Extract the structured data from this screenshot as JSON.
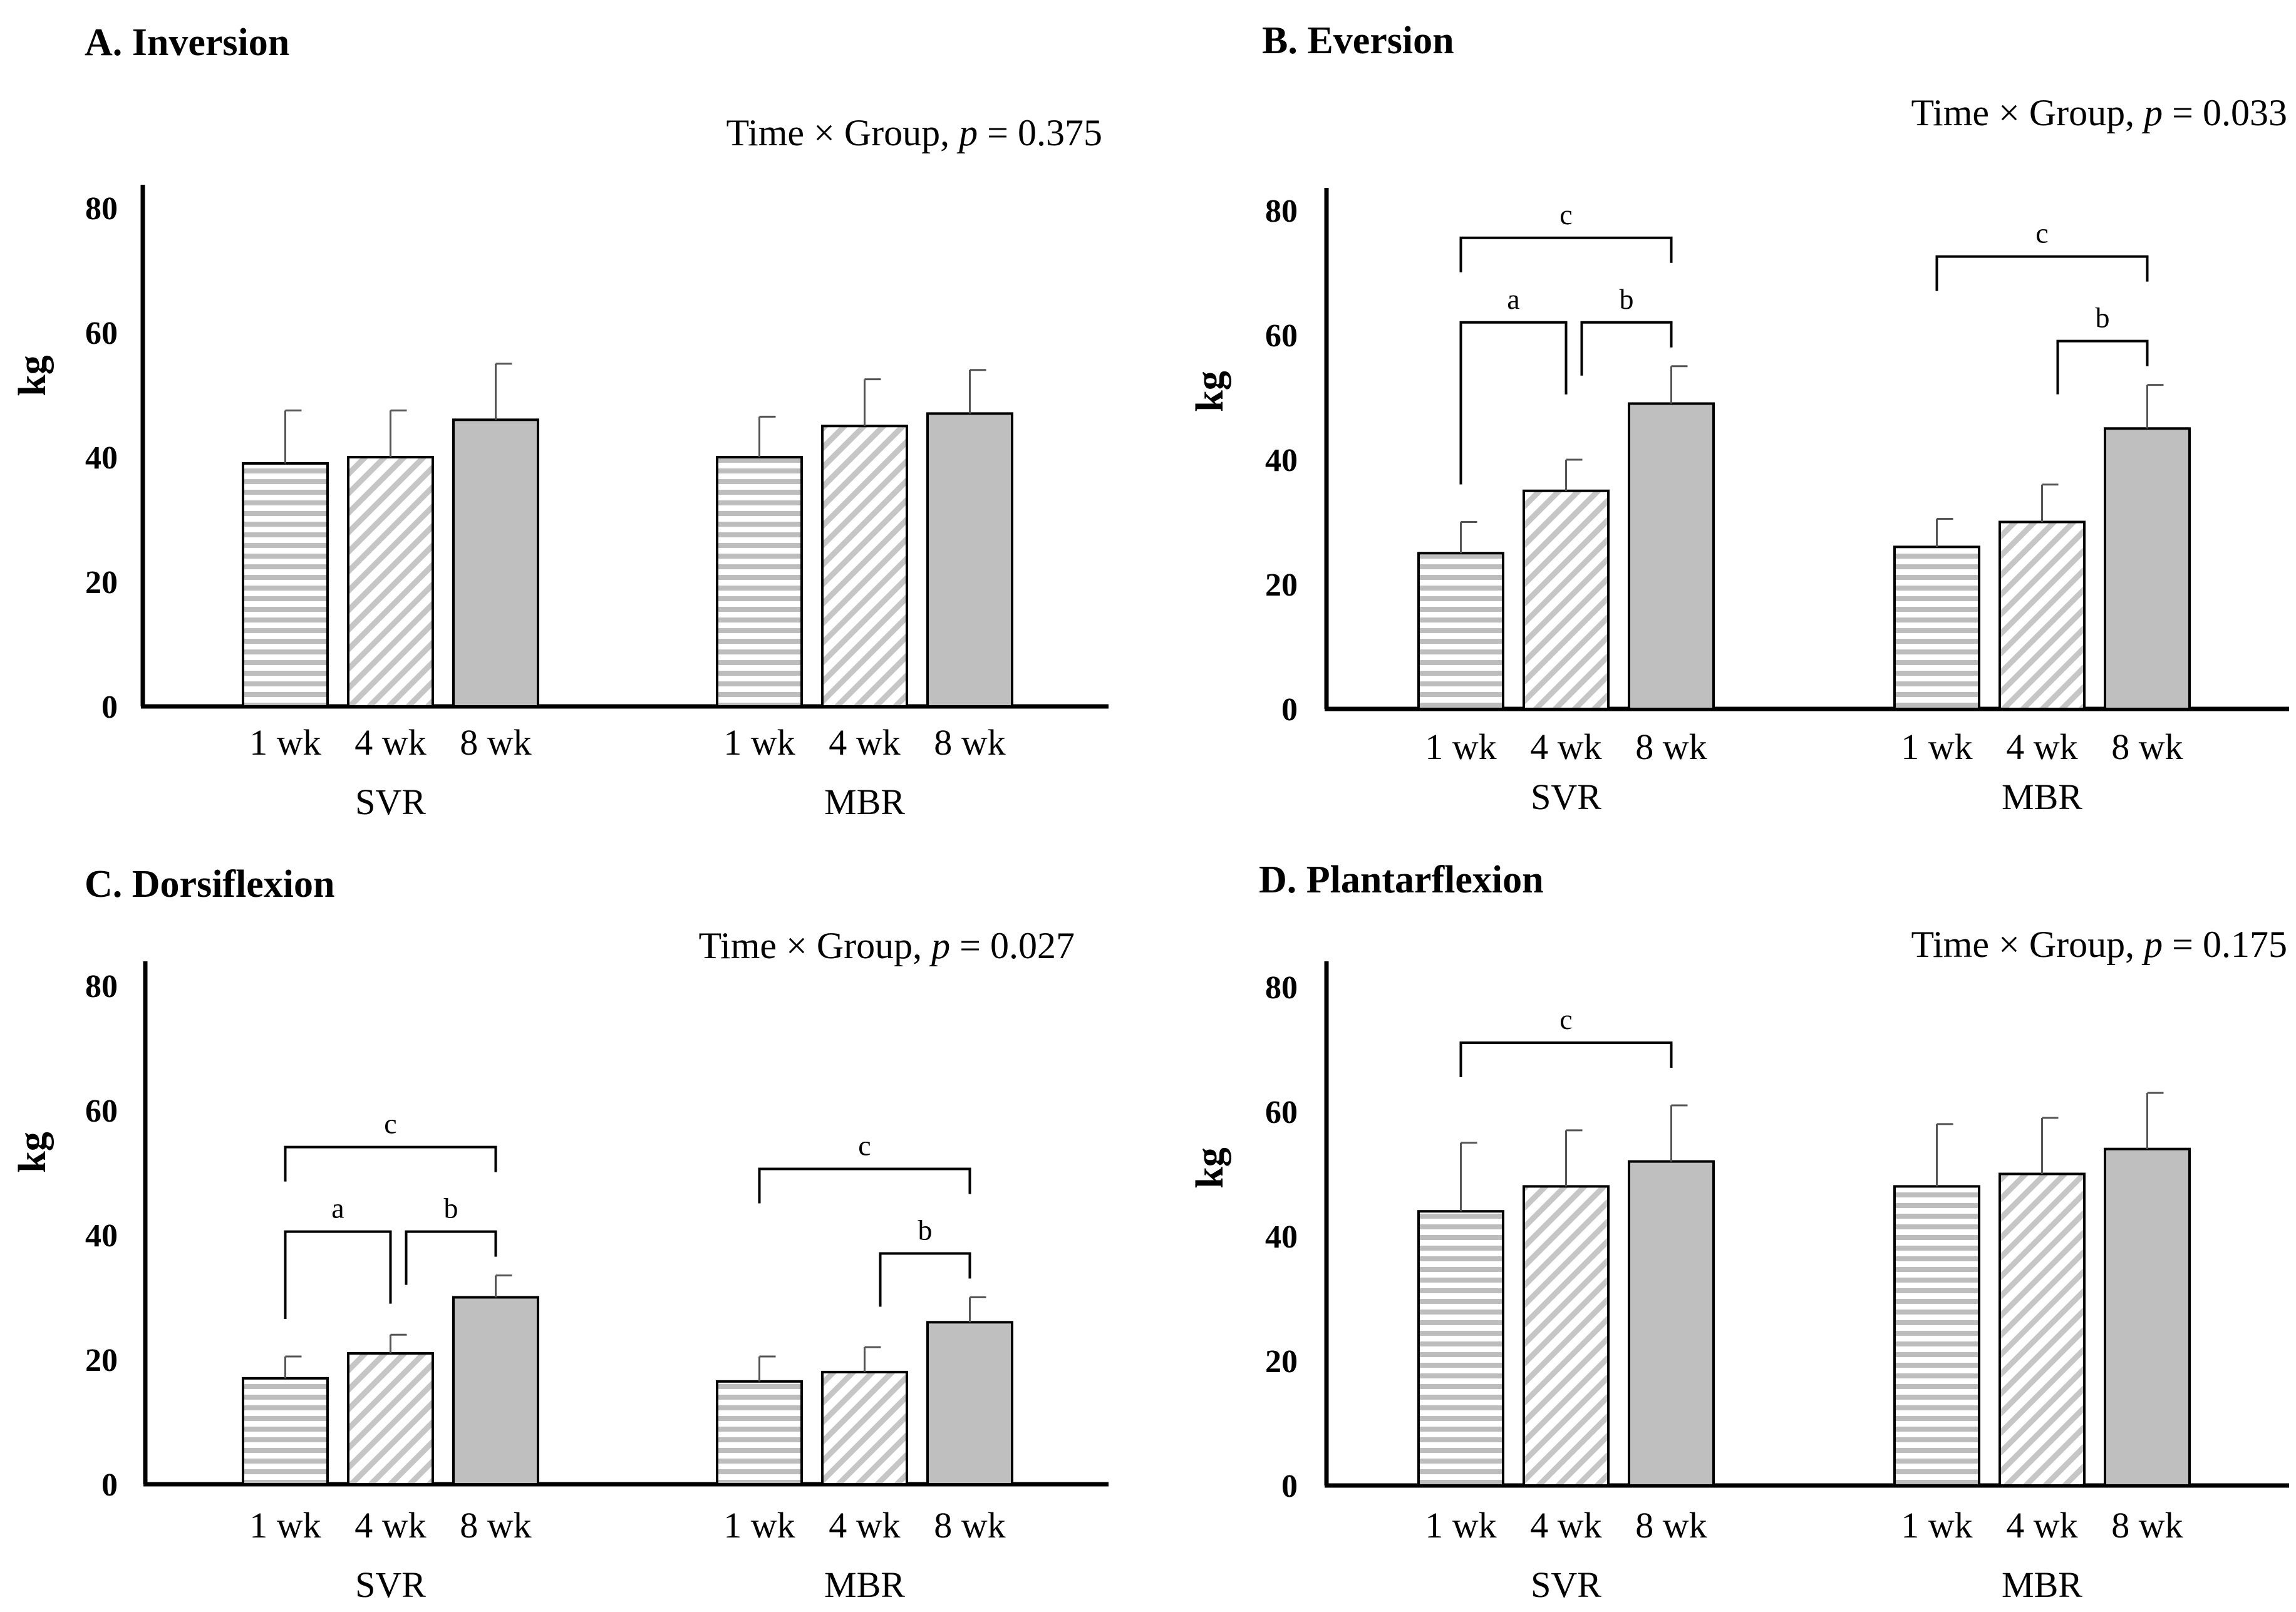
{
  "chart_data": [
    {
      "type": "bar",
      "title": "A. Inversion",
      "interaction": "Time × Group, p = 0.375",
      "ylabel": "kg",
      "ylim": [
        0,
        80
      ],
      "yticks": [
        "0",
        "20",
        "40",
        "60",
        "80"
      ],
      "groups": [
        "SVR",
        "MBR"
      ],
      "categories": [
        "1 wk",
        "4 wk",
        "8 wk"
      ],
      "series": [
        {
          "name": "SVR",
          "values": [
            39,
            40,
            46
          ],
          "errors": [
            8.5,
            7.5,
            9
          ]
        },
        {
          "name": "MBR",
          "values": [
            40,
            45,
            47
          ],
          "errors": [
            6.5,
            7.5,
            7
          ]
        }
      ],
      "significance": []
    },
    {
      "type": "bar",
      "title": "B. Eversion",
      "interaction": "Time × Group, p = 0.033",
      "ylabel": "kg",
      "ylim": [
        0,
        80
      ],
      "yticks": [
        "0",
        "20",
        "40",
        "60",
        "80"
      ],
      "groups": [
        "SVR",
        "MBR"
      ],
      "categories": [
        "1 wk",
        "4 wk",
        "8 wk"
      ],
      "series": [
        {
          "name": "SVR",
          "values": [
            25,
            35,
            49
          ],
          "errors": [
            5,
            5,
            6
          ]
        },
        {
          "name": "MBR",
          "values": [
            26,
            30,
            45
          ],
          "errors": [
            4.5,
            6,
            7
          ]
        }
      ],
      "significance": [
        {
          "group": 0,
          "from": 0,
          "to": 2,
          "label": "c"
        },
        {
          "group": 0,
          "from": 0,
          "to": 1,
          "label": "a"
        },
        {
          "group": 0,
          "from": 1,
          "to": 2,
          "label": "b"
        },
        {
          "group": 1,
          "from": 0,
          "to": 2,
          "label": "c"
        },
        {
          "group": 1,
          "from": 1,
          "to": 2,
          "label": "b"
        }
      ]
    },
    {
      "type": "bar",
      "title": "C. Dorsiflexion",
      "interaction": "Time × Group, p = 0.027",
      "ylabel": "kg",
      "ylim": [
        0,
        80
      ],
      "yticks": [
        "0",
        "20",
        "40",
        "60",
        "80"
      ],
      "groups": [
        "SVR",
        "MBR"
      ],
      "categories": [
        "1 wk",
        "4 wk",
        "8 wk"
      ],
      "series": [
        {
          "name": "SVR",
          "values": [
            17,
            21,
            30
          ],
          "errors": [
            3.5,
            3,
            3.5
          ]
        },
        {
          "name": "MBR",
          "values": [
            16.5,
            18,
            26
          ],
          "errors": [
            4,
            4,
            4
          ]
        }
      ],
      "significance": [
        {
          "group": 0,
          "from": 0,
          "to": 2,
          "label": "c"
        },
        {
          "group": 0,
          "from": 0,
          "to": 1,
          "label": "a"
        },
        {
          "group": 0,
          "from": 1,
          "to": 2,
          "label": "b"
        },
        {
          "group": 1,
          "from": 0,
          "to": 2,
          "label": "c"
        },
        {
          "group": 1,
          "from": 1,
          "to": 2,
          "label": "b"
        }
      ]
    },
    {
      "type": "bar",
      "title": "D. Plantarflexion",
      "interaction": "Time × Group, p = 0.175",
      "ylabel": "kg",
      "ylim": [
        0,
        80
      ],
      "yticks": [
        "0",
        "20",
        "40",
        "60",
        "80"
      ],
      "groups": [
        "SVR",
        "MBR"
      ],
      "categories": [
        "1 wk",
        "4 wk",
        "8 wk"
      ],
      "series": [
        {
          "name": "SVR",
          "values": [
            44,
            48,
            52
          ],
          "errors": [
            11,
            9,
            9
          ]
        },
        {
          "name": "MBR",
          "values": [
            48,
            50,
            54
          ],
          "errors": [
            10,
            9,
            9
          ]
        }
      ],
      "significance": [
        {
          "group": 0,
          "from": 0,
          "to": 2,
          "label": "c"
        }
      ]
    }
  ]
}
